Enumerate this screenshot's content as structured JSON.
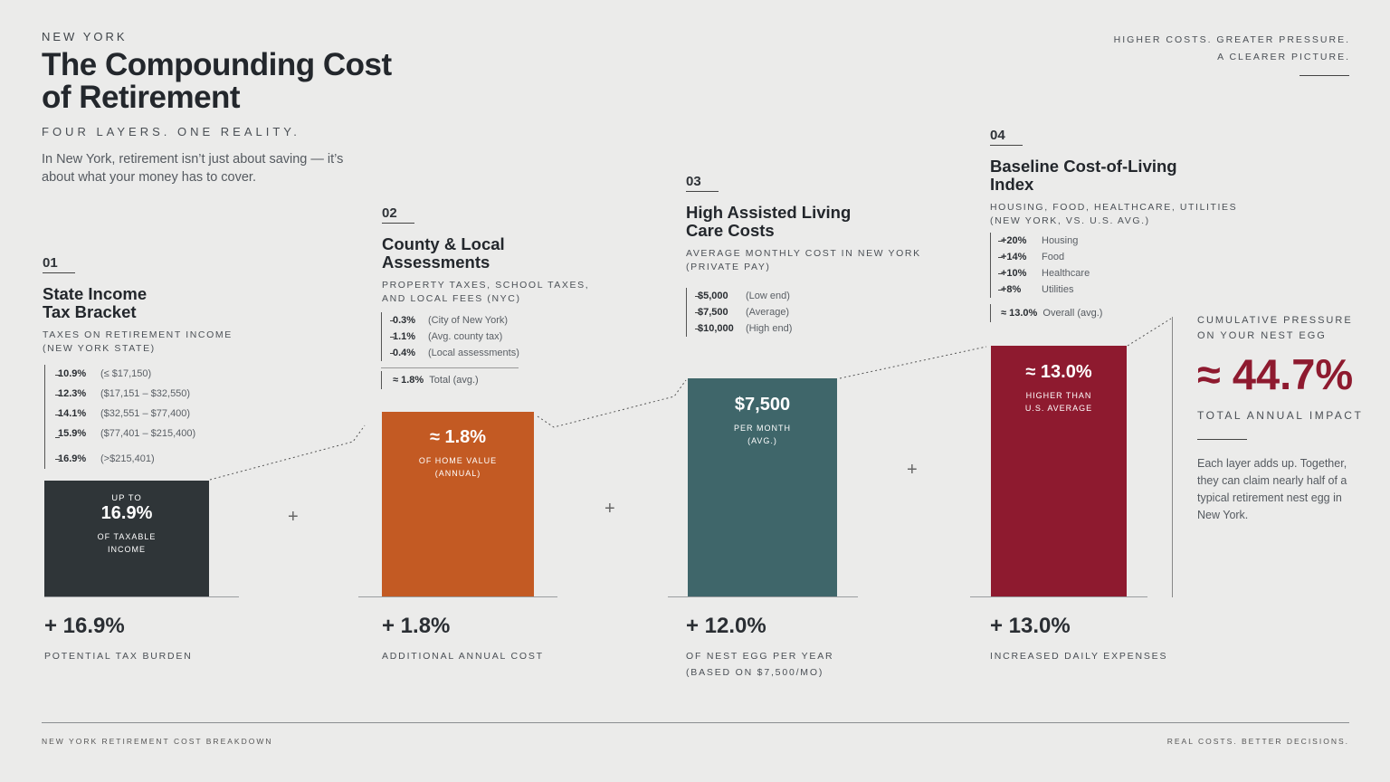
{
  "header": {
    "eyebrow": "NEW YORK",
    "title": "The Compounding Cost of Retirement",
    "subtitle": "FOUR LAYERS. ONE REALITY.",
    "intro": "In New York, retirement isn’t just about saving — it’s about what your money has to cover.",
    "tagline_1": "HIGHER COSTS. GREATER PRESSURE.",
    "tagline_2": "A CLEARER PICTURE."
  },
  "layers": [
    {
      "number": "01",
      "title": "State Income Tax Bracket",
      "subtitle_1": "TAXES ON RETIREMENT INCOME",
      "subtitle_2": "(NEW YORK STATE)",
      "rows": [
        {
          "value": "10.9%",
          "label": "(≤ $17,150)"
        },
        {
          "value": "12.3%",
          "label": "($17,151 – $32,550)"
        },
        {
          "value": "14.1%",
          "label": "($32,551 – $77,400)"
        },
        {
          "value": "15.9%",
          "label": "($77,401 – $215,400)"
        },
        {
          "value": "16.9%",
          "label": "(>$215,401)"
        }
      ],
      "bar": {
        "pre": "UP TO",
        "value": "16.9%",
        "caption_1": "OF TAXABLE",
        "caption_2": "INCOME"
      },
      "bottom_value": "+ 16.9%",
      "bottom_label_1": "POTENTIAL TAX BURDEN",
      "bottom_label_2": ""
    },
    {
      "number": "02",
      "title": "County & Local Assessments",
      "subtitle_1": "PROPERTY TAXES, SCHOOL TAXES,",
      "subtitle_2": "AND LOCAL FEES (NYC)",
      "rows": [
        {
          "value": "0.3%",
          "label": "(City of New York)"
        },
        {
          "value": "1.1%",
          "label": "(Avg. county tax)"
        },
        {
          "value": "0.4%",
          "label": "(Local assessments)"
        }
      ],
      "total": {
        "value": "≈ 1.8%",
        "label": "Total (avg.)"
      },
      "bar": {
        "value": "≈ 1.8%",
        "caption_1": "OF HOME VALUE",
        "caption_2": "(ANNUAL)"
      },
      "bottom_value": "+ 1.8%",
      "bottom_label_1": "ADDITIONAL ANNUAL COST",
      "bottom_label_2": ""
    },
    {
      "number": "03",
      "title": "High Assisted Living Care Costs",
      "subtitle_1": "AVERAGE MONTHLY COST IN NEW YORK",
      "subtitle_2": "(PRIVATE PAY)",
      "rows": [
        {
          "value": "$5,000",
          "label": "(Low end)"
        },
        {
          "value": "$7,500",
          "label": "(Average)"
        },
        {
          "value": "$10,000",
          "label": "(High end)"
        }
      ],
      "bar": {
        "value": "$7,500",
        "caption_1": "PER MONTH",
        "caption_2": "(AVG.)"
      },
      "bottom_value": "+ 12.0%",
      "bottom_label_1": "OF NEST EGG PER YEAR",
      "bottom_label_2": "(BASED ON $7,500/MO)"
    },
    {
      "number": "04",
      "title": "Baseline Cost-of-Living Index",
      "subtitle_1": "HOUSING, FOOD, HEALTHCARE, UTILITIES",
      "subtitle_2": "(NEW YORK, vs. U.S. AVG.)",
      "rows": [
        {
          "value": "+20%",
          "label": "Housing"
        },
        {
          "value": "+14%",
          "label": "Food"
        },
        {
          "value": "+10%",
          "label": "Healthcare"
        },
        {
          "value": "+8%",
          "label": "Utilities"
        }
      ],
      "total": {
        "value": "≈ 13.0%",
        "label": "Overall (avg.)"
      },
      "bar": {
        "value": "≈ 13.0%",
        "caption_1": "HIGHER THAN",
        "caption_2": "U.S. AVERAGE"
      },
      "bottom_value": "+ 13.0%",
      "bottom_label_1": "INCREASED DAILY EXPENSES",
      "bottom_label_2": ""
    }
  ],
  "plus_sign": "+",
  "cumulative": {
    "label_1": "CUMULATIVE PRESSURE",
    "label_2": "ON YOUR NEST EGG",
    "value": "≈ 44.7%",
    "caption": "TOTAL ANNUAL IMPACT",
    "description": "Each layer adds up. Together, they can claim nearly half of a typical retirement nest egg in New York."
  },
  "footer": {
    "left": "NEW YORK RETIREMENT COST BREAKDOWN",
    "right": "REAL COSTS. BETTER DECISIONS."
  },
  "colors": {
    "layer_1": "#2f3538",
    "layer_2": "#c35a23",
    "layer_3": "#3f666a",
    "layer_4": "#8e1a2f",
    "accent": "#8e1a2f"
  },
  "chart_data": {
    "type": "bar",
    "categories": [
      "State Income Tax Bracket",
      "County & Local Assessments",
      "High Assisted Living Care Costs",
      "Baseline Cost-of-Living Index"
    ],
    "values": [
      16.9,
      1.8,
      12.0,
      13.0
    ],
    "total": 44.7
  }
}
